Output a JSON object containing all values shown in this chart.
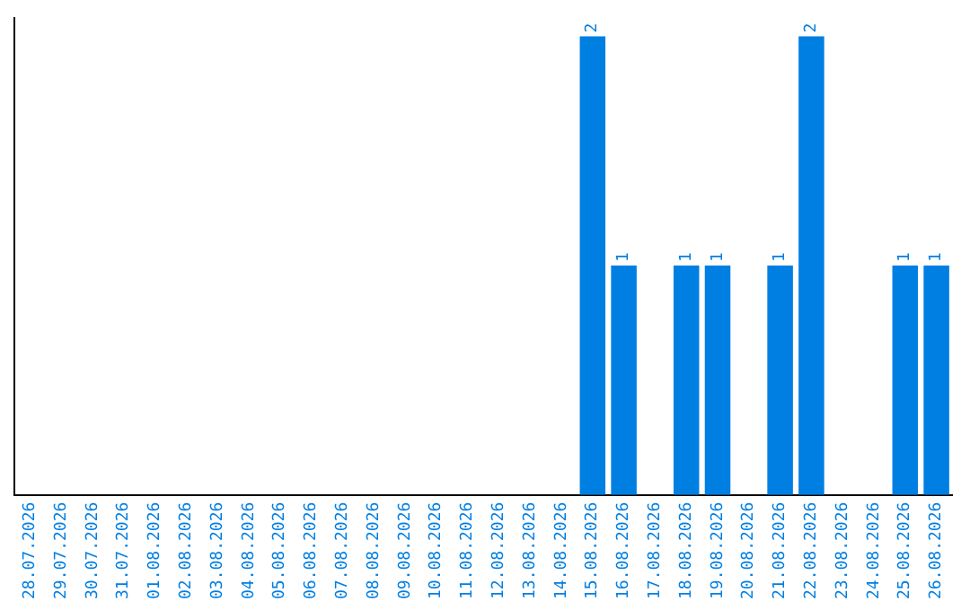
{
  "chart_data": {
    "type": "bar",
    "categories": [
      "28.07.2026",
      "29.07.2026",
      "30.07.2026",
      "31.07.2026",
      "01.08.2026",
      "02.08.2026",
      "03.08.2026",
      "04.08.2026",
      "05.08.2026",
      "06.08.2026",
      "07.08.2026",
      "08.08.2026",
      "09.08.2026",
      "10.08.2026",
      "11.08.2026",
      "12.08.2026",
      "13.08.2026",
      "14.08.2026",
      "15.08.2026",
      "16.08.2026",
      "17.08.2026",
      "18.08.2026",
      "19.08.2026",
      "20.08.2026",
      "21.08.2026",
      "22.08.2026",
      "23.08.2026",
      "24.08.2026",
      "25.08.2026",
      "26.08.2026"
    ],
    "values": [
      null,
      null,
      null,
      null,
      null,
      null,
      null,
      null,
      null,
      null,
      null,
      null,
      null,
      null,
      null,
      null,
      null,
      null,
      2,
      1,
      null,
      1,
      1,
      null,
      1,
      2,
      null,
      null,
      1,
      1
    ],
    "data_labels": true,
    "ylim": [
      0,
      2.08
    ],
    "color": "#007fe3",
    "tick_labels": "x",
    "grid": false,
    "legend": false
  }
}
